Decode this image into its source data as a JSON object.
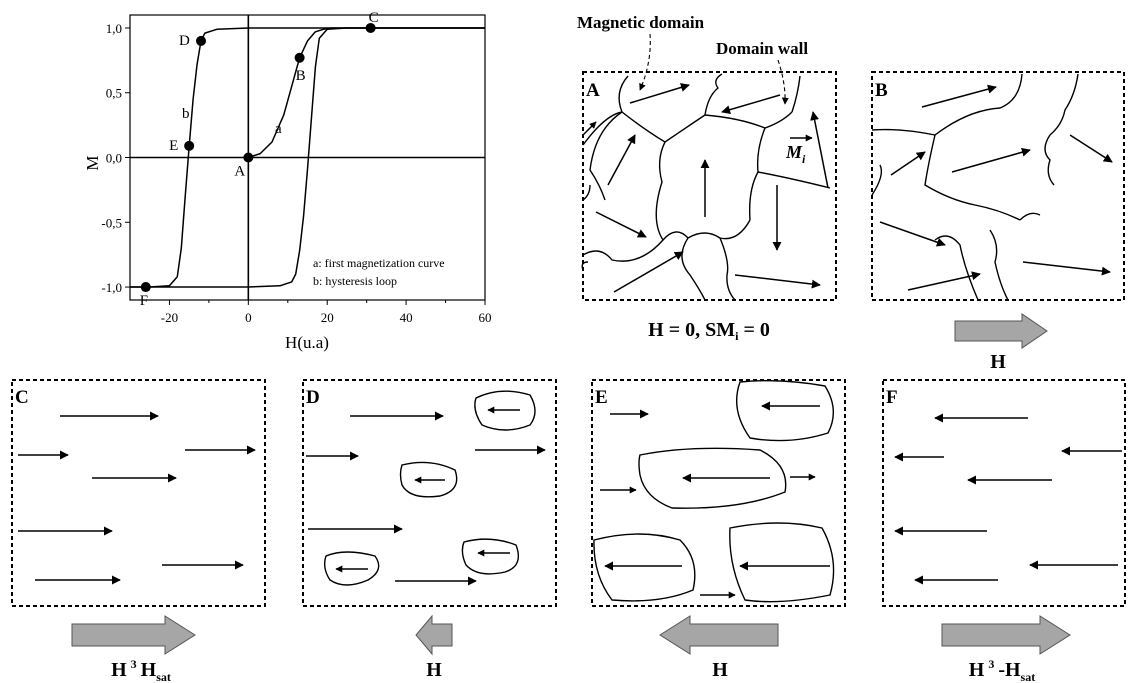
{
  "chart": {
    "x_label": "H(u.a)",
    "y_label": "M",
    "x_ticks": [
      "-20",
      "0",
      "20",
      "40",
      "60"
    ],
    "y_ticks": [
      "1,0",
      "0,5",
      "0,0",
      "-0,5",
      "-1,0"
    ],
    "curve_labels": [
      "a",
      "b"
    ],
    "legend": [
      "a: first magnetization curve",
      "b: hysteresis loop"
    ],
    "points": [
      {
        "label": "A",
        "H": 0,
        "M": 0.0
      },
      {
        "label": "B",
        "H": 13,
        "M": 0.77
      },
      {
        "label": "C",
        "H": 31,
        "M": 1.0
      },
      {
        "label": "D",
        "H": -12,
        "M": 0.9
      },
      {
        "label": "E",
        "H": -15,
        "M": 0.09
      },
      {
        "label": "F",
        "H": -26,
        "M": -1.0
      }
    ]
  },
  "chart_data": {
    "type": "line",
    "xlim": [
      -30,
      60
    ],
    "ylim": [
      -1.1,
      1.1
    ],
    "series": [
      {
        "name": "a",
        "x": [
          0,
          3,
          6,
          9,
          11,
          13,
          15,
          17,
          19,
          21,
          25,
          60
        ],
        "y": [
          0,
          0.03,
          0.12,
          0.33,
          0.55,
          0.77,
          0.9,
          0.97,
          0.99,
          1.0,
          1.0,
          1.0
        ]
      },
      {
        "name": "b (descending)",
        "x": [
          60,
          0,
          -8,
          -11,
          -12,
          -13,
          -14,
          -15,
          -16,
          -17,
          -18,
          -20,
          -25,
          -30
        ],
        "y": [
          1.0,
          1.0,
          0.99,
          0.96,
          0.9,
          0.72,
          0.45,
          0.09,
          -0.3,
          -0.7,
          -0.92,
          -0.99,
          -1.0,
          -1.0
        ]
      },
      {
        "name": "b (ascending)",
        "x": [
          -30,
          0,
          8,
          11,
          12,
          13,
          14,
          15,
          16,
          17,
          18,
          20,
          25,
          60
        ],
        "y": [
          -1.0,
          -1.0,
          -0.99,
          -0.96,
          -0.9,
          -0.72,
          -0.45,
          -0.09,
          0.3,
          0.7,
          0.92,
          0.99,
          1.0,
          1.0
        ]
      }
    ]
  },
  "annotations": {
    "magnetic_domain": "Magnetic domain",
    "domain_wall": "Domain wall",
    "moment_symbol": "M",
    "moment_subscript": "i"
  },
  "panels": {
    "A": {
      "label": "A",
      "caption_main": "H = 0, SM",
      "caption_sub": "i",
      "caption_tail": " = 0"
    },
    "B": {
      "label": "B",
      "caption": "H"
    },
    "C": {
      "label": "C",
      "caption_a": "H",
      "caption_sup": "3",
      "caption_b": "H",
      "caption_sub": "sat"
    },
    "D": {
      "label": "D",
      "caption": "H"
    },
    "E": {
      "label": "E",
      "caption": "H"
    },
    "F": {
      "label": "F",
      "caption_a": "H",
      "caption_sup": "3",
      "caption_b": "-H",
      "caption_sub": "sat"
    }
  },
  "colors": {
    "big_arrow_fill": "#a6a6a6",
    "line": "#000000"
  }
}
